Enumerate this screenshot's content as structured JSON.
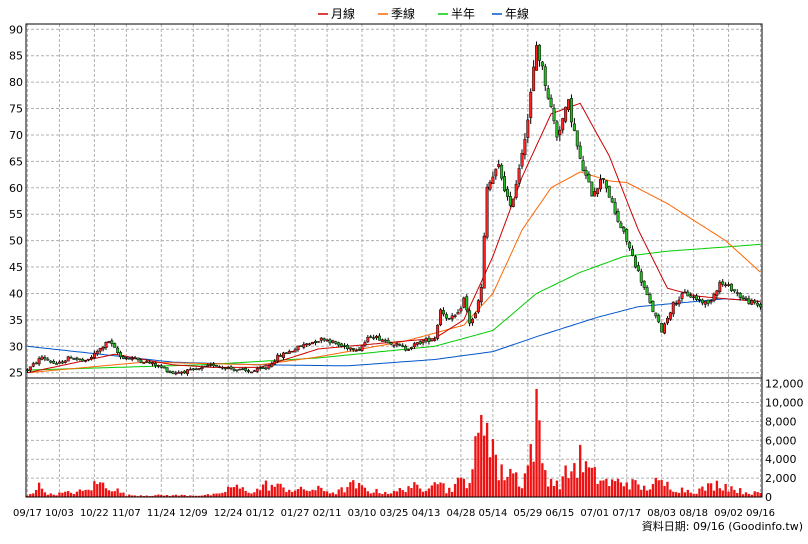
{
  "chart_data": {
    "type": "candlestick",
    "legend": [
      {
        "label": "月線",
        "color": "#cc0000"
      },
      {
        "label": "季線",
        "color": "#ff6600"
      },
      {
        "label": "半年",
        "color": "#00cc00"
      },
      {
        "label": "年線",
        "color": "#0055cc"
      }
    ],
    "price_axis": {
      "ticks": [
        25,
        30,
        35,
        40,
        45,
        50,
        55,
        60,
        65,
        70,
        75,
        80,
        85,
        90
      ],
      "ylim": [
        24,
        91
      ]
    },
    "volume_axis": {
      "ticks": [
        "0",
        "2,000",
        "4,000",
        "6,000",
        "8,000",
        "10,000",
        "12,000"
      ],
      "values": [
        0,
        2000,
        4000,
        6000,
        8000,
        10000,
        12000
      ],
      "ylim": [
        0,
        12600
      ]
    },
    "x_tick_labels": [
      "09/17",
      "10/03",
      "10/22",
      "11/07",
      "11/24",
      "12/09",
      "12/24",
      "01/12",
      "01/27",
      "02/11",
      "03/10",
      "03/25",
      "04/13",
      "04/28",
      "05/14",
      "05/29",
      "06/15",
      "07/01",
      "07/17",
      "08/03",
      "08/18",
      "09/02",
      "09/16"
    ],
    "n_periods": 253,
    "price_keypoints": [
      [
        0,
        25.5
      ],
      [
        5,
        28
      ],
      [
        10,
        26.5
      ],
      [
        15,
        28
      ],
      [
        20,
        27
      ],
      [
        25,
        29.5
      ],
      [
        28,
        31
      ],
      [
        32,
        28
      ],
      [
        38,
        27.5
      ],
      [
        44,
        26.5
      ],
      [
        50,
        25
      ],
      [
        58,
        25.5
      ],
      [
        64,
        26.5
      ],
      [
        70,
        25.8
      ],
      [
        76,
        25.2
      ],
      [
        82,
        25.8
      ],
      [
        86,
        28
      ],
      [
        90,
        29
      ],
      [
        96,
        30.5
      ],
      [
        102,
        31.5
      ],
      [
        108,
        30
      ],
      [
        114,
        29.5
      ],
      [
        118,
        32
      ],
      [
        124,
        31
      ],
      [
        130,
        29.5
      ],
      [
        136,
        31
      ],
      [
        140,
        31.5
      ],
      [
        142,
        37
      ],
      [
        145,
        35
      ],
      [
        148,
        36
      ],
      [
        150,
        39
      ],
      [
        152,
        34.5
      ],
      [
        154,
        36
      ],
      [
        156,
        41
      ],
      [
        158,
        60
      ],
      [
        162,
        64
      ],
      [
        166,
        56
      ],
      [
        168,
        61
      ],
      [
        172,
        73
      ],
      [
        175,
        87
      ],
      [
        178,
        80
      ],
      [
        182,
        70
      ],
      [
        186,
        76
      ],
      [
        190,
        65
      ],
      [
        194,
        59
      ],
      [
        198,
        62
      ],
      [
        202,
        55
      ],
      [
        206,
        50
      ],
      [
        210,
        44
      ],
      [
        214,
        38
      ],
      [
        218,
        33
      ],
      [
        222,
        38
      ],
      [
        226,
        40
      ],
      [
        230,
        39
      ],
      [
        234,
        38
      ],
      [
        238,
        42
      ],
      [
        242,
        41
      ],
      [
        246,
        39
      ],
      [
        250,
        38
      ],
      [
        252,
        37.5
      ]
    ],
    "ma_month": [
      [
        0,
        25
      ],
      [
        30,
        28.5
      ],
      [
        50,
        26.5
      ],
      [
        64,
        26
      ],
      [
        80,
        26
      ],
      [
        100,
        29.5
      ],
      [
        120,
        30.5
      ],
      [
        140,
        31.5
      ],
      [
        150,
        35
      ],
      [
        160,
        47
      ],
      [
        170,
        62
      ],
      [
        180,
        74
      ],
      [
        190,
        76
      ],
      [
        200,
        66
      ],
      [
        210,
        52
      ],
      [
        220,
        41
      ],
      [
        230,
        39.5
      ],
      [
        240,
        39
      ],
      [
        252,
        38.5
      ]
    ],
    "ma_quarter": [
      [
        0,
        25
      ],
      [
        40,
        27
      ],
      [
        80,
        26.5
      ],
      [
        100,
        28
      ],
      [
        130,
        31
      ],
      [
        150,
        34
      ],
      [
        160,
        40
      ],
      [
        170,
        52
      ],
      [
        180,
        60
      ],
      [
        190,
        63
      ],
      [
        200,
        61.3
      ],
      [
        206,
        61
      ],
      [
        220,
        57
      ],
      [
        240,
        50
      ],
      [
        252,
        44
      ]
    ],
    "ma_half": [
      [
        0,
        25.5
      ],
      [
        60,
        26.5
      ],
      [
        100,
        27.8
      ],
      [
        140,
        30
      ],
      [
        160,
        33
      ],
      [
        175,
        40
      ],
      [
        190,
        44
      ],
      [
        205,
        47
      ],
      [
        220,
        48
      ],
      [
        240,
        48.8
      ],
      [
        252,
        49.3
      ]
    ],
    "ma_year": [
      [
        0,
        30
      ],
      [
        50,
        27
      ],
      [
        80,
        26.5
      ],
      [
        110,
        26.3
      ],
      [
        140,
        27.5
      ],
      [
        160,
        29
      ],
      [
        176,
        32
      ],
      [
        196,
        35.5
      ],
      [
        210,
        37.5
      ],
      [
        230,
        38.5
      ],
      [
        240,
        39
      ],
      [
        252,
        38.5
      ]
    ],
    "volume_keypoints": [
      [
        0,
        200
      ],
      [
        4,
        1200
      ],
      [
        8,
        300
      ],
      [
        20,
        700
      ],
      [
        24,
        1600
      ],
      [
        28,
        1300
      ],
      [
        34,
        200
      ],
      [
        60,
        200
      ],
      [
        66,
        300
      ],
      [
        70,
        1200
      ],
      [
        74,
        900
      ],
      [
        78,
        600
      ],
      [
        82,
        1400
      ],
      [
        86,
        1200
      ],
      [
        92,
        800
      ],
      [
        100,
        900
      ],
      [
        106,
        500
      ],
      [
        112,
        1400
      ],
      [
        118,
        700
      ],
      [
        126,
        500
      ],
      [
        132,
        1400
      ],
      [
        136,
        600
      ],
      [
        140,
        3000
      ],
      [
        144,
        700
      ],
      [
        148,
        1600
      ],
      [
        152,
        2200
      ],
      [
        156,
        7700
      ],
      [
        158,
        10600
      ],
      [
        162,
        2500
      ],
      [
        166,
        3300
      ],
      [
        170,
        1600
      ],
      [
        172,
        3600
      ],
      [
        175,
        9000
      ],
      [
        178,
        2800
      ],
      [
        182,
        1400
      ],
      [
        186,
        2900
      ],
      [
        190,
        4300
      ],
      [
        194,
        2600
      ],
      [
        200,
        1600
      ],
      [
        206,
        1800
      ],
      [
        212,
        1000
      ],
      [
        216,
        1600
      ],
      [
        220,
        1400
      ],
      [
        224,
        900
      ],
      [
        230,
        700
      ],
      [
        238,
        1600
      ],
      [
        246,
        600
      ],
      [
        252,
        400
      ]
    ],
    "footer": "資料日期: 09/16  (Goodinfo.tw)"
  }
}
